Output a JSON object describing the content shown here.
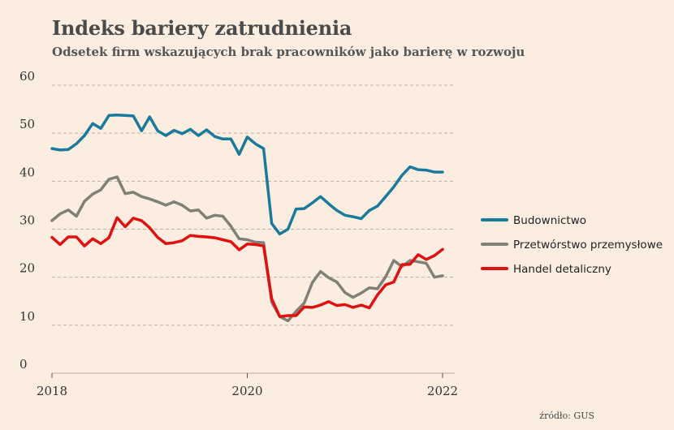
{
  "title": "Indeks bariery zatrudnienia",
  "subtitle": "Odsetek firm wskazujących brak pracowników jako barierę w rozwoju",
  "source": "źródło: GUS",
  "chart_data": {
    "type": "line",
    "title": "Indeks bariery zatrudnienia",
    "subtitle": "Odsetek firm wskazujących brak pracowników jako barierę w rozwoju",
    "xlabel": "",
    "ylabel": "",
    "xlim": [
      2018.0,
      2022.0
    ],
    "ylim": [
      0,
      60
    ],
    "yticks": [
      0,
      10,
      20,
      30,
      40,
      50,
      60
    ],
    "xticks": [
      2018,
      2020,
      2022
    ],
    "grid": "horizontal-dashed",
    "legend_position": "right",
    "series": [
      {
        "name": "Budownictwo",
        "color": "#1a7a9c",
        "x": [
          2018.0,
          2018.083,
          2018.167,
          2018.25,
          2018.333,
          2018.417,
          2018.5,
          2018.583,
          2018.667,
          2018.75,
          2018.833,
          2018.917,
          2019.0,
          2019.083,
          2019.167,
          2019.25,
          2019.333,
          2019.417,
          2019.5,
          2019.583,
          2019.667,
          2019.75,
          2019.833,
          2019.917,
          2020.0,
          2020.083,
          2020.167,
          2020.25,
          2020.333,
          2020.417,
          2020.5,
          2020.583,
          2020.667,
          2020.75,
          2020.833,
          2020.917,
          2021.0,
          2021.083,
          2021.167,
          2021.25,
          2021.333,
          2021.417,
          2021.5,
          2021.583,
          2021.667,
          2021.75,
          2021.833,
          2021.917,
          2022.0
        ],
        "values": [
          46.8,
          46.5,
          46.6,
          47.8,
          49.5,
          52.0,
          51.0,
          53.7,
          53.8,
          53.7,
          53.6,
          50.5,
          53.4,
          50.5,
          49.5,
          50.6,
          49.9,
          50.8,
          49.5,
          50.7,
          49.3,
          48.8,
          48.8,
          45.6,
          49.2,
          47.8,
          46.8,
          31.2,
          29.0,
          30.0,
          34.2,
          34.3,
          35.5,
          36.8,
          35.3,
          33.9,
          32.9,
          32.6,
          32.2,
          33.9,
          34.8,
          36.8,
          38.8,
          41.2,
          43.0,
          42.4,
          42.3,
          41.9,
          41.9
        ]
      },
      {
        "name": "Przetwórstwo przemysłowe",
        "color": "#808077",
        "x": [
          2018.0,
          2018.083,
          2018.167,
          2018.25,
          2018.333,
          2018.417,
          2018.5,
          2018.583,
          2018.667,
          2018.75,
          2018.833,
          2018.917,
          2019.0,
          2019.083,
          2019.167,
          2019.25,
          2019.333,
          2019.417,
          2019.5,
          2019.583,
          2019.667,
          2019.75,
          2019.833,
          2019.917,
          2020.0,
          2020.083,
          2020.167,
          2020.25,
          2020.333,
          2020.417,
          2020.5,
          2020.583,
          2020.667,
          2020.75,
          2020.833,
          2020.917,
          2021.0,
          2021.083,
          2021.167,
          2021.25,
          2021.333,
          2021.417,
          2021.5,
          2021.583,
          2021.667,
          2021.75,
          2021.833,
          2021.917,
          2022.0
        ],
        "values": [
          31.8,
          33.2,
          34.0,
          32.7,
          35.8,
          37.3,
          38.2,
          40.4,
          40.9,
          37.4,
          37.7,
          36.8,
          36.3,
          35.7,
          35.0,
          35.7,
          35.0,
          33.8,
          34.0,
          32.3,
          32.9,
          32.7,
          30.6,
          28.0,
          27.8,
          27.3,
          27.2,
          14.8,
          11.8,
          10.9,
          12.9,
          14.6,
          18.9,
          21.2,
          19.9,
          19.0,
          16.8,
          15.8,
          16.7,
          17.8,
          17.6,
          20.1,
          23.5,
          22.2,
          23.5,
          23.2,
          22.9,
          20.0,
          20.3
        ]
      },
      {
        "name": "Handel detaliczny",
        "color": "#e01010",
        "x": [
          2018.0,
          2018.083,
          2018.167,
          2018.25,
          2018.333,
          2018.417,
          2018.5,
          2018.583,
          2018.667,
          2018.75,
          2018.833,
          2018.917,
          2019.0,
          2019.083,
          2019.167,
          2019.25,
          2019.333,
          2019.417,
          2019.5,
          2019.583,
          2019.667,
          2019.75,
          2019.833,
          2019.917,
          2020.0,
          2020.083,
          2020.167,
          2020.25,
          2020.333,
          2020.417,
          2020.5,
          2020.583,
          2020.667,
          2020.75,
          2020.833,
          2020.917,
          2021.0,
          2021.083,
          2021.167,
          2021.25,
          2021.333,
          2021.417,
          2021.5,
          2021.583,
          2021.667,
          2021.75,
          2021.833,
          2021.917,
          2022.0
        ],
        "values": [
          28.3,
          26.8,
          28.4,
          28.4,
          26.5,
          28.0,
          27.0,
          28.2,
          32.4,
          30.5,
          32.3,
          31.8,
          30.3,
          28.3,
          27.0,
          27.2,
          27.6,
          28.7,
          28.5,
          28.4,
          28.2,
          27.8,
          27.4,
          25.7,
          26.9,
          26.8,
          26.5,
          15.5,
          11.8,
          12.0,
          12.0,
          13.8,
          13.7,
          14.2,
          14.9,
          14.1,
          14.3,
          13.7,
          14.2,
          13.6,
          16.3,
          18.4,
          19.0,
          22.6,
          22.7,
          24.7,
          23.7,
          24.5,
          25.8
        ]
      }
    ]
  }
}
